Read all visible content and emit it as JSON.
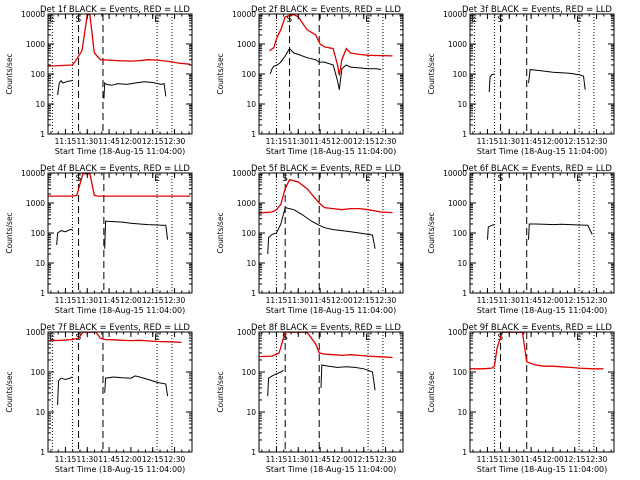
{
  "figure": {
    "xlabel": "Start Time (18-Aug-15 11:04:00)",
    "ylabel": "Counts/sec",
    "xticks": [
      "11:15",
      "11:30",
      "11:45",
      "12:00",
      "12:15",
      "12:30"
    ],
    "yticks": [
      "1",
      "10",
      "100",
      "1000",
      "10000"
    ],
    "colors": {
      "events": "#000000",
      "lld": "#e00000",
      "axes": "#000000"
    }
  },
  "chart_data": [
    {
      "type": "line",
      "title": "Det 1f BLACK = Events, RED = LLD",
      "xlabel": "Start Time (18-Aug-15 11:04:00)",
      "ylabel": "Counts/sec",
      "xlim": [
        11.05,
        12.7
      ],
      "ylim": [
        1,
        10000
      ],
      "yscale": "log",
      "markers": [
        {
          "label": "E",
          "x": 11.1,
          "style": "dotted"
        },
        {
          "label": "",
          "x": 11.33,
          "style": "dotted"
        },
        {
          "label": "S",
          "x": 11.4,
          "style": "dashed"
        },
        {
          "label": "",
          "x": 11.68,
          "style": "dashed"
        },
        {
          "label": "E",
          "x": 12.3,
          "style": "dotted"
        },
        {
          "label": "",
          "x": 12.47,
          "style": "dotted"
        }
      ],
      "series": [
        {
          "name": "LLD",
          "color": "#e00000",
          "x": [
            11.0,
            11.33,
            11.36,
            11.44,
            11.5,
            11.53,
            11.58,
            11.65,
            11.75,
            11.85,
            12.0,
            12.1,
            12.2,
            12.3,
            12.45,
            12.55,
            12.68
          ],
          "y": [
            180,
            200,
            260,
            600,
            9500,
            9500,
            500,
            300,
            290,
            280,
            270,
            280,
            300,
            290,
            260,
            230,
            210
          ]
        },
        {
          "name": "Events",
          "color": "#000000",
          "x": [
            11.16,
            11.18,
            11.2,
            11.22,
            11.26,
            11.29,
            11.32,
            11.33,
            null,
            11.69,
            11.7,
            11.72,
            11.78,
            11.85,
            11.95,
            12.05,
            12.15,
            12.25,
            12.35,
            12.38,
            12.4
          ],
          "y": [
            20,
            50,
            60,
            50,
            55,
            58,
            60,
            64,
            null,
            15,
            50,
            45,
            42,
            48,
            45,
            50,
            55,
            52,
            45,
            48,
            18
          ]
        }
      ]
    },
    {
      "type": "line",
      "title": "Det 2f BLACK = Events, RED = LLD",
      "xlabel": "Start Time (18-Aug-15 11:04:00)",
      "ylabel": "Counts/sec",
      "xlim": [
        11.05,
        12.7
      ],
      "ylim": [
        1,
        10000
      ],
      "yscale": "log",
      "markers": [
        {
          "label": "",
          "x": 11.25,
          "style": "dotted"
        },
        {
          "label": "S",
          "x": 11.4,
          "style": "dashed"
        },
        {
          "label": "",
          "x": 11.74,
          "style": "dashed"
        },
        {
          "label": "E",
          "x": 12.3,
          "style": "dotted"
        },
        {
          "label": "",
          "x": 12.47,
          "style": "dotted"
        }
      ],
      "series": [
        {
          "name": "LLD",
          "color": "#e00000",
          "x": [
            11.17,
            11.22,
            11.25,
            11.3,
            11.35,
            11.4,
            11.45,
            11.5,
            11.6,
            11.7,
            11.75,
            11.8,
            11.9,
            11.95,
            11.97,
            12.0,
            12.05,
            12.1,
            12.2,
            12.3,
            12.45,
            12.58
          ],
          "y": [
            600,
            750,
            1500,
            3000,
            8000,
            9000,
            9500,
            8000,
            3000,
            2000,
            1000,
            800,
            700,
            200,
            90,
            300,
            700,
            500,
            450,
            420,
            410,
            400
          ]
        },
        {
          "name": "Events",
          "color": "#000000",
          "x": [
            11.18,
            11.2,
            11.22,
            11.26,
            11.3,
            11.35,
            11.4,
            11.45,
            11.5,
            11.6,
            11.7,
            11.74,
            11.8,
            11.9,
            11.95,
            11.97,
            12.0,
            12.05,
            12.1,
            12.2,
            12.3,
            12.4,
            12.45
          ],
          "y": [
            100,
            150,
            180,
            200,
            250,
            400,
            700,
            500,
            450,
            350,
            300,
            250,
            250,
            200,
            60,
            30,
            150,
            200,
            170,
            160,
            150,
            150,
            140
          ]
        }
      ]
    },
    {
      "type": "line",
      "title": "Det 3f BLACK = Events, RED = LLD",
      "xlabel": "Start Time (18-Aug-15 11:04:00)",
      "ylabel": "Counts/sec",
      "xlim": [
        11.05,
        12.7
      ],
      "ylim": [
        1,
        10000
      ],
      "yscale": "log",
      "markers": [
        {
          "label": "E",
          "x": 11.1,
          "style": "dotted"
        },
        {
          "label": "",
          "x": 11.33,
          "style": "dotted"
        },
        {
          "label": "S",
          "x": 11.4,
          "style": "dashed"
        },
        {
          "label": "",
          "x": 11.7,
          "style": "dashed"
        },
        {
          "label": "E",
          "x": 12.3,
          "style": "dotted"
        },
        {
          "label": "",
          "x": 12.47,
          "style": "dotted"
        }
      ],
      "series": [
        {
          "name": "Events",
          "color": "#000000",
          "x": [
            11.27,
            11.28,
            11.3,
            11.33,
            null,
            11.72,
            11.74,
            11.8,
            11.9,
            12.0,
            12.1,
            12.2,
            12.3,
            12.35,
            12.37
          ],
          "y": [
            25,
            80,
            95,
            100,
            null,
            50,
            140,
            135,
            125,
            115,
            110,
            105,
            95,
            85,
            30
          ]
        }
      ]
    },
    {
      "type": "line",
      "title": "Det 4f BLACK = Events, RED = LLD",
      "xlabel": "Start Time (18-Aug-15 11:04:00)",
      "ylabel": "Counts/sec",
      "xlim": [
        11.05,
        12.7
      ],
      "ylim": [
        1,
        10000
      ],
      "yscale": "log",
      "markers": [
        {
          "label": "",
          "x": 11.33,
          "style": "dotted"
        },
        {
          "label": "S",
          "x": 11.4,
          "style": "dashed"
        },
        {
          "label": "",
          "x": 11.69,
          "style": "dashed"
        },
        {
          "label": "E",
          "x": 12.3,
          "style": "dotted"
        },
        {
          "label": "",
          "x": 12.47,
          "style": "dotted"
        }
      ],
      "series": [
        {
          "name": "LLD",
          "color": "#e00000",
          "x": [
            11.0,
            11.3,
            11.33,
            11.38,
            11.45,
            11.53,
            11.58,
            11.62,
            12.68
          ],
          "y": [
            1700,
            1700,
            1700,
            1800,
            9500,
            9500,
            1800,
            1700,
            1700
          ]
        },
        {
          "name": "Events",
          "color": "#000000",
          "x": [
            11.15,
            11.16,
            11.2,
            11.25,
            11.3,
            11.33,
            null,
            11.7,
            11.71,
            11.8,
            11.9,
            12.0,
            12.1,
            12.2,
            12.3,
            12.35,
            12.4,
            12.42
          ],
          "y": [
            40,
            100,
            120,
            110,
            130,
            130,
            null,
            30,
            250,
            240,
            230,
            210,
            200,
            190,
            185,
            180,
            180,
            60
          ]
        }
      ]
    },
    {
      "type": "line",
      "title": "Det 5f BLACK = Events, RED = LLD",
      "xlabel": "Start Time (18-Aug-15 11:04:00)",
      "ylabel": "Counts/sec",
      "xlim": [
        11.05,
        12.7
      ],
      "ylim": [
        1,
        10000
      ],
      "yscale": "log",
      "markers": [
        {
          "label": "",
          "x": 11.25,
          "style": "dotted"
        },
        {
          "label": "S",
          "x": 11.35,
          "style": "dashed"
        },
        {
          "label": "",
          "x": 11.74,
          "style": "dashed"
        },
        {
          "label": "E",
          "x": 12.3,
          "style": "dotted"
        },
        {
          "label": "",
          "x": 12.47,
          "style": "dotted"
        }
      ],
      "series": [
        {
          "name": "LLD",
          "color": "#e00000",
          "x": [
            11.0,
            11.2,
            11.25,
            11.3,
            11.35,
            11.4,
            11.5,
            11.6,
            11.74,
            11.8,
            11.9,
            12.0,
            12.1,
            12.2,
            12.3,
            12.45,
            12.58
          ],
          "y": [
            450,
            500,
            600,
            900,
            3000,
            6000,
            5000,
            3000,
            1000,
            700,
            650,
            600,
            650,
            650,
            600,
            500,
            480
          ]
        },
        {
          "name": "Events",
          "color": "#000000",
          "x": [
            11.15,
            11.16,
            11.2,
            11.25,
            11.3,
            11.35,
            11.45,
            11.55,
            11.65,
            11.74,
            11.8,
            11.9,
            12.0,
            12.1,
            12.2,
            12.3,
            12.35,
            12.38
          ],
          "y": [
            20,
            70,
            90,
            100,
            200,
            700,
            600,
            400,
            250,
            180,
            150,
            130,
            120,
            110,
            100,
            90,
            85,
            30
          ]
        }
      ]
    },
    {
      "type": "line",
      "title": "Det 6f BLACK = Events, RED = LLD",
      "xlabel": "Start Time (18-Aug-15 11:04:00)",
      "ylabel": "Counts/sec",
      "xlim": [
        11.05,
        12.7
      ],
      "ylim": [
        1,
        10000
      ],
      "yscale": "log",
      "markers": [
        {
          "label": "",
          "x": 11.33,
          "style": "dotted"
        },
        {
          "label": "S",
          "x": 11.4,
          "style": "dashed"
        },
        {
          "label": "",
          "x": 11.7,
          "style": "dashed"
        },
        {
          "label": "E",
          "x": 12.3,
          "style": "dotted"
        },
        {
          "label": "",
          "x": 12.47,
          "style": "dotted"
        }
      ],
      "series": [
        {
          "name": "Events",
          "color": "#000000",
          "x": [
            11.25,
            11.26,
            11.3,
            11.33,
            null,
            11.72,
            11.73,
            11.8,
            11.9,
            12.0,
            12.1,
            12.2,
            12.3,
            12.4,
            12.45
          ],
          "y": [
            60,
            160,
            180,
            190,
            null,
            60,
            200,
            200,
            195,
            190,
            195,
            190,
            185,
            180,
            90
          ]
        }
      ]
    },
    {
      "type": "line",
      "title": "Det 7f BLACK = Events, RED = LLD",
      "xlabel": "Start Time (18-Aug-15 11:04:00)",
      "ylabel": "Counts/sec",
      "xlim": [
        11.05,
        12.7
      ],
      "ylim": [
        1,
        1000
      ],
      "yscale": "log",
      "markers": [
        {
          "label": "E",
          "x": 11.1,
          "style": "dotted"
        },
        {
          "label": "",
          "x": 11.33,
          "style": "dotted"
        },
        {
          "label": "S",
          "x": 11.4,
          "style": "dashed"
        },
        {
          "label": "",
          "x": 11.68,
          "style": "dashed"
        },
        {
          "label": "E",
          "x": 12.3,
          "style": "dotted"
        },
        {
          "label": "",
          "x": 12.47,
          "style": "dotted"
        }
      ],
      "series": [
        {
          "name": "LLD",
          "color": "#e00000",
          "x": [
            11.0,
            11.2,
            11.33,
            11.4,
            11.45,
            11.55,
            11.6,
            11.65,
            11.7,
            11.8,
            11.9,
            12.0,
            12.1,
            12.2,
            12.3,
            12.45,
            12.58
          ],
          "y": [
            600,
            620,
            650,
            700,
            990,
            990,
            990,
            700,
            650,
            640,
            620,
            610,
            620,
            600,
            580,
            570,
            550
          ]
        },
        {
          "name": "Events",
          "color": "#000000",
          "x": [
            11.16,
            11.17,
            11.2,
            11.25,
            11.3,
            11.33,
            null,
            11.7,
            11.71,
            11.8,
            11.9,
            12.0,
            12.05,
            12.1,
            12.2,
            12.3,
            12.4,
            12.42
          ],
          "y": [
            15,
            60,
            70,
            65,
            70,
            75,
            null,
            30,
            70,
            75,
            72,
            70,
            80,
            75,
            65,
            55,
            50,
            25
          ]
        }
      ]
    },
    {
      "type": "line",
      "title": "Det 8f BLACK = Events, RED = LLD",
      "xlabel": "Start Time (18-Aug-15 11:04:00)",
      "ylabel": "Counts/sec",
      "xlim": [
        11.05,
        12.7
      ],
      "ylim": [
        1,
        1000
      ],
      "yscale": "log",
      "markers": [
        {
          "label": "",
          "x": 11.25,
          "style": "dotted"
        },
        {
          "label": "S",
          "x": 11.35,
          "style": "dashed"
        },
        {
          "label": "",
          "x": 11.74,
          "style": "dashed"
        },
        {
          "label": "E",
          "x": 12.3,
          "style": "dotted"
        },
        {
          "label": "",
          "x": 12.47,
          "style": "dotted"
        }
      ],
      "series": [
        {
          "name": "LLD",
          "color": "#e00000",
          "x": [
            11.0,
            11.2,
            11.28,
            11.35,
            11.4,
            11.5,
            11.6,
            11.7,
            11.74,
            11.8,
            11.9,
            12.0,
            12.1,
            12.2,
            12.3,
            12.45,
            12.58
          ],
          "y": [
            240,
            250,
            300,
            990,
            990,
            990,
            990,
            500,
            300,
            280,
            270,
            260,
            270,
            260,
            250,
            240,
            230
          ]
        },
        {
          "name": "Events",
          "color": "#000000",
          "x": [
            11.15,
            11.16,
            11.2,
            11.25,
            11.3,
            11.33,
            null,
            11.76,
            11.77,
            11.85,
            11.95,
            12.05,
            12.15,
            12.25,
            12.3,
            12.35,
            12.38
          ],
          "y": [
            25,
            70,
            80,
            90,
            100,
            110,
            null,
            40,
            150,
            140,
            130,
            135,
            130,
            120,
            110,
            100,
            35
          ]
        }
      ]
    },
    {
      "type": "line",
      "title": "Det 9f BLACK = Events, RED = LLD",
      "xlabel": "Start Time (18-Aug-15 11:04:00)",
      "ylabel": "Counts/sec",
      "xlim": [
        11.05,
        12.7
      ],
      "ylim": [
        1,
        1000
      ],
      "yscale": "log",
      "markers": [
        {
          "label": "",
          "x": 11.33,
          "style": "dotted"
        },
        {
          "label": "S",
          "x": 11.4,
          "style": "dashed"
        },
        {
          "label": "",
          "x": 11.7,
          "style": "dashed"
        },
        {
          "label": "E",
          "x": 12.3,
          "style": "dotted"
        },
        {
          "label": "",
          "x": 12.47,
          "style": "dotted"
        }
      ],
      "series": [
        {
          "name": "LLD",
          "color": "#e00000",
          "x": [
            11.0,
            11.2,
            11.3,
            11.33,
            11.36,
            11.42,
            11.5,
            11.6,
            11.65,
            11.7,
            11.8,
            11.9,
            12.0,
            12.1,
            12.2,
            12.3,
            12.45,
            12.58
          ],
          "y": [
            120,
            120,
            125,
            140,
            400,
            990,
            990,
            990,
            990,
            180,
            150,
            140,
            140,
            135,
            130,
            125,
            120,
            120
          ]
        }
      ]
    }
  ]
}
